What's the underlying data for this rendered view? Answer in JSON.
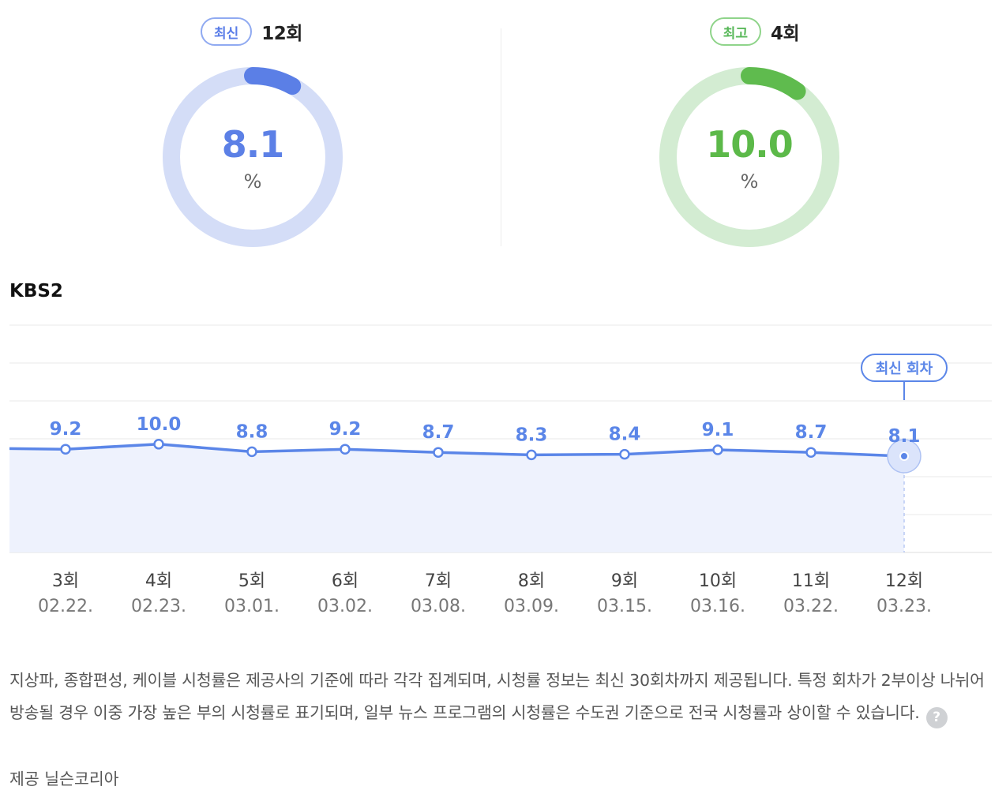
{
  "latest": {
    "badge": "최신",
    "episode": "12회",
    "value": "8.1",
    "unit": "%",
    "fraction": 0.081,
    "color": "#5b7fe6",
    "track": "#d4ddf7",
    "valueColor": "#5c80e6"
  },
  "best": {
    "badge": "최고",
    "episode": "4회",
    "value": "10.0",
    "unit": "%",
    "fraction": 0.1,
    "color": "#5fbb4e",
    "track": "#d3ecd2",
    "valueColor": "#5cb949"
  },
  "channel": "KBS2",
  "chart_data": {
    "type": "line",
    "series": [
      {
        "values": [
          9.2,
          10.0,
          8.8,
          9.2,
          8.7,
          8.3,
          8.4,
          9.1,
          8.7,
          8.1
        ]
      }
    ],
    "x_labels": [
      "3회",
      "4회",
      "5회",
      "6회",
      "7회",
      "8회",
      "9회",
      "10회",
      "11회",
      "12회"
    ],
    "x_dates": [
      "02.22.",
      "02.23.",
      "03.01.",
      "03.02.",
      "03.08.",
      "03.09.",
      "03.15.",
      "03.16.",
      "03.22.",
      "03.23."
    ],
    "data_labels": [
      "9.2",
      "10.0",
      "8.8",
      "9.2",
      "8.7",
      "8.3",
      "8.4",
      "9.1",
      "8.7",
      "8.1"
    ],
    "annotation": "최신 회차",
    "grid": true,
    "line_color": "#5b86e8",
    "fill_color": "#eef2fd"
  },
  "footer": {
    "note": "지상파, 종합편성, 케이블 시청률은 제공사의 기준에 따라 각각 집계되며, 시청률 정보는 최신 30회차까지 제공됩니다. 특정 회차가 2부이상 나뉘어 방송될 경우 이중 가장 높은 부의 시청률로 표기되며, 일부 뉴스 프로그램의 시청률은 수도권 기준으로 전국 시청률과 상이할 수 있습니다.",
    "help_glyph": "?",
    "provider": "제공 닐슨코리아"
  }
}
